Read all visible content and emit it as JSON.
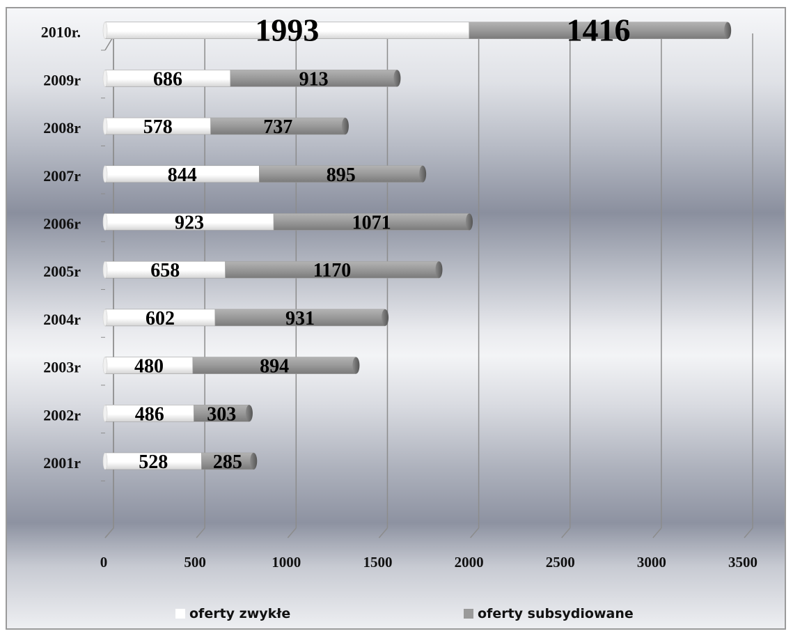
{
  "chart_data": {
    "type": "bar",
    "orientation": "horizontal",
    "stacked": true,
    "title": "",
    "xlabel": "",
    "ylabel": "",
    "categories": [
      "2001r",
      "2002r",
      "2003r",
      "2004r",
      "2005r",
      "2006r",
      "2007r",
      "2008r",
      "2009r",
      "2010r."
    ],
    "series": [
      {
        "name": "oferty zwykłe",
        "color": "#ffffff",
        "values": [
          528,
          486,
          480,
          602,
          658,
          923,
          844,
          578,
          686,
          1993
        ]
      },
      {
        "name": "oferty subsydiowane",
        "color": "#9a9a9a",
        "values": [
          285,
          303,
          894,
          931,
          1170,
          1071,
          895,
          737,
          913,
          1416
        ]
      }
    ],
    "xlim": [
      0,
      3500
    ],
    "x_ticks": [
      "0",
      "500",
      "1000",
      "1500",
      "2000",
      "2500",
      "3000",
      "3500"
    ],
    "grid": true,
    "legend_position": "bottom",
    "data_labels": true
  }
}
